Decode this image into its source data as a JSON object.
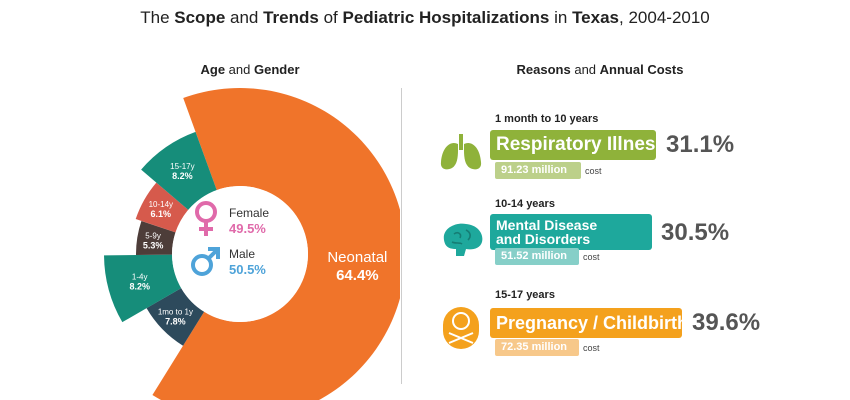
{
  "title": {
    "w1": "The ",
    "b1": "Scope",
    "w2": " and ",
    "b2": "Trends",
    "w3": " of ",
    "b3": "Pediatric Hospitalizations",
    "w4": " in ",
    "b4": "Texas",
    "w5": ", 2004-2010"
  },
  "left_header": {
    "a": "Age",
    "b": " and ",
    "c": "Gender"
  },
  "right_header": {
    "a": "Reasons",
    "b": " and ",
    "c": "Annual Costs"
  },
  "chart_data": {
    "type": "pie",
    "title": "Age and Gender",
    "categories": [
      "Neonatal",
      "1mo to 1y",
      "1-4y",
      "5-9y",
      "10-14y",
      "15-17y"
    ],
    "values": [
      64.4,
      7.8,
      8.2,
      5.3,
      6.1,
      8.2
    ],
    "labels": [
      "64.4%",
      "7.8%",
      "8.2%",
      "5.3%",
      "6.1%",
      "8.2%"
    ],
    "colors": [
      "#f0742a",
      "#2d4a5c",
      "#168d7a",
      "#4d3d39",
      "#d65a4c",
      "#168d7a"
    ]
  },
  "gender": {
    "female_label": "Female",
    "female_value": "49.5%",
    "female_color": "#e06aaa",
    "male_label": "Male",
    "male_value": "50.5%",
    "male_color": "#4ea3d9"
  },
  "reasons": [
    {
      "age": "1 month to 10 years",
      "name": "Respiratory Illness",
      "percent": "31.1%",
      "cost": "91.23 million",
      "cost_word": "cost",
      "color": "#8fb23a",
      "cost_color": "#bcd08a",
      "icon": "lungs-icon"
    },
    {
      "age": "10-14 years",
      "name_line1": "Mental Disease",
      "name_line2": "and Disorders",
      "percent": "30.5%",
      "cost": "51.52 million",
      "cost_word": "cost",
      "color": "#1ea89c",
      "cost_color": "#86cfc8",
      "icon": "brain-icon"
    },
    {
      "age": "15-17 years",
      "name": "Pregnancy / Childbirth",
      "percent": "39.6%",
      "cost": "72.35 million",
      "cost_word": "cost",
      "color": "#f4a11d",
      "cost_color": "#f7c88a",
      "icon": "baby-icon"
    }
  ]
}
